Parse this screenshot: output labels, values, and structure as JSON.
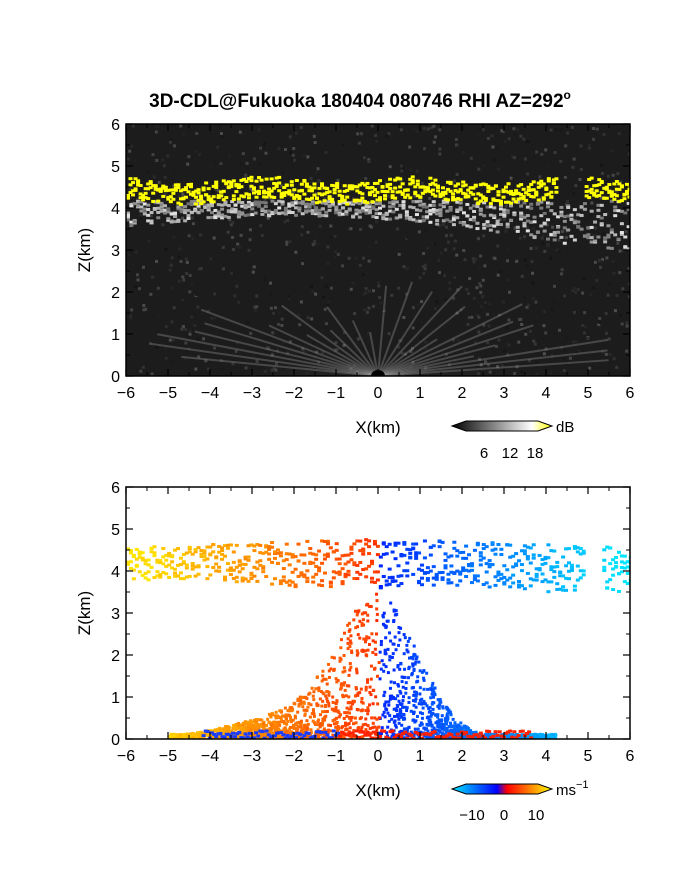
{
  "title": "3D-CDL@Fukuoka 180404 080746 RHI AZ=292",
  "title_sup": "o",
  "chart_data": [
    {
      "type": "heatmap",
      "quantity": "backscatter intensity",
      "xlabel": "X(km)",
      "ylabel": "Z(km)",
      "xlim": [
        -6,
        6
      ],
      "ylim": [
        0,
        6
      ],
      "xticks": [
        "-6",
        "-5",
        "-4",
        "-3",
        "-2",
        "-1",
        "0",
        "1",
        "2",
        "3",
        "4",
        "5",
        "6"
      ],
      "yticks": [
        "0",
        "1",
        "2",
        "3",
        "4",
        "5",
        "6"
      ],
      "colorbar": {
        "unit": "dB",
        "ticks": [
          "6",
          "12",
          "18"
        ],
        "colors": [
          "#000000",
          "#ffffff",
          "#ffff00"
        ]
      },
      "features": {
        "bright_layer_base_km": 4.2,
        "bright_layer_top_km": 4.7,
        "lower_haze_top_km": 3.6
      }
    },
    {
      "type": "heatmap",
      "quantity": "radial velocity",
      "xlabel": "X(km)",
      "ylabel": "Z(km)",
      "xlim": [
        -6,
        6
      ],
      "ylim": [
        0,
        6
      ],
      "xticks": [
        "-6",
        "-5",
        "-4",
        "-3",
        "-2",
        "-1",
        "0",
        "1",
        "2",
        "3",
        "4",
        "5",
        "6"
      ],
      "yticks": [
        "0",
        "1",
        "2",
        "3",
        "4",
        "5",
        "6"
      ],
      "colorbar": {
        "unit": "ms",
        "unit_sup": "−1",
        "ticks": [
          "−10",
          "0",
          "10"
        ],
        "colors": [
          "#00e5ff",
          "#0000ff",
          "#ff0000",
          "#ffff00"
        ]
      },
      "features": {
        "upper_layer_km": [
          3.6,
          4.8
        ],
        "lower_region_top_km": 3.0
      }
    }
  ]
}
